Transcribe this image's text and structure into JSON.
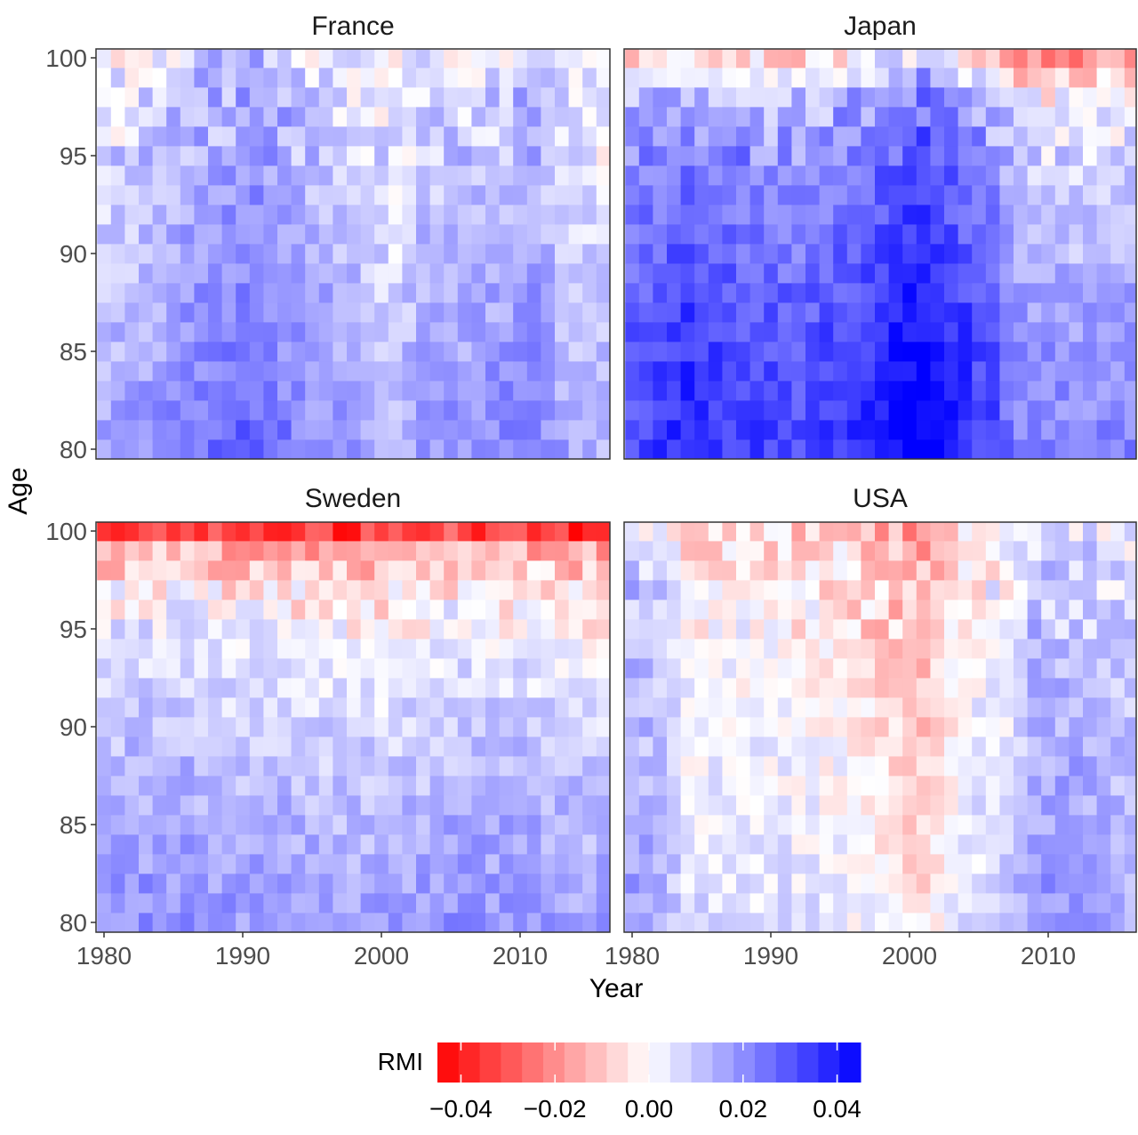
{
  "chart_data": {
    "type": "heatmap",
    "x_label": "Year",
    "y_label": "Age",
    "x_range": [
      1980,
      2016
    ],
    "y_range": [
      80,
      100
    ],
    "x_ticks": [
      "1980",
      "1990",
      "2000",
      "2010"
    ],
    "y_ticks": [
      "80",
      "85",
      "90",
      "95",
      "100"
    ],
    "color_scale": {
      "title": "RMI",
      "limits": [
        -0.045,
        0.045
      ],
      "ticks": [
        "−0.04",
        "−0.02",
        "0.00",
        "0.02",
        "0.04"
      ],
      "tick_values": [
        -0.04,
        -0.02,
        0.0,
        0.02,
        0.04
      ],
      "low_color": "#ff0000",
      "mid_color": "#ffffff",
      "high_color": "#0000ff"
    },
    "panels": [
      {
        "title": "France",
        "year_bands": [
          [
            1980,
            0.012
          ],
          [
            1984,
            0.016
          ],
          [
            1987,
            0.021
          ],
          [
            1991,
            0.024
          ],
          [
            1994,
            0.018
          ],
          [
            1998,
            0.014
          ],
          [
            2001,
            0.009
          ],
          [
            2003,
            0.015
          ],
          [
            2007,
            0.016
          ],
          [
            2011,
            0.02
          ],
          [
            2013,
            0.012
          ],
          [
            2016,
            0.01
          ]
        ],
        "age_bands": [
          [
            80,
            0.004
          ],
          [
            85,
            0.0
          ],
          [
            90,
            -0.003
          ],
          [
            95,
            -0.006
          ],
          [
            98,
            -0.008
          ],
          [
            100,
            -0.012
          ]
        ]
      },
      {
        "title": "Japan",
        "year_bands": [
          [
            1980,
            0.024
          ],
          [
            1984,
            0.03
          ],
          [
            1988,
            0.026
          ],
          [
            1992,
            0.024
          ],
          [
            1996,
            0.028
          ],
          [
            1999,
            0.034
          ],
          [
            2001,
            0.038
          ],
          [
            2003,
            0.032
          ],
          [
            2006,
            0.024
          ],
          [
            2008,
            0.014
          ],
          [
            2012,
            0.012
          ],
          [
            2016,
            0.014
          ]
        ],
        "age_bands": [
          [
            80,
            0.008
          ],
          [
            85,
            0.006
          ],
          [
            90,
            0.0
          ],
          [
            95,
            -0.005
          ],
          [
            98,
            -0.014
          ],
          [
            100,
            -0.03
          ]
        ]
      },
      {
        "title": "Sweden",
        "year_bands": [
          [
            1980,
            0.013
          ],
          [
            1985,
            0.014
          ],
          [
            1990,
            0.012
          ],
          [
            1995,
            0.011
          ],
          [
            2000,
            0.01
          ],
          [
            2005,
            0.013
          ],
          [
            2010,
            0.013
          ],
          [
            2016,
            0.01
          ]
        ],
        "age_bands": [
          [
            80,
            0.006
          ],
          [
            85,
            0.002
          ],
          [
            90,
            -0.003
          ],
          [
            94,
            -0.009
          ],
          [
            97,
            -0.016
          ],
          [
            99,
            -0.026
          ],
          [
            100,
            -0.046
          ]
        ]
      },
      {
        "title": "USA",
        "year_bands": [
          [
            1980,
            0.016
          ],
          [
            1982,
            0.012
          ],
          [
            1984,
            0.004
          ],
          [
            1990,
            0.003
          ],
          [
            1995,
            0.001
          ],
          [
            1998,
            -0.004
          ],
          [
            2001,
            -0.008
          ],
          [
            2004,
            0.004
          ],
          [
            2007,
            0.006
          ],
          [
            2009,
            0.016
          ],
          [
            2012,
            0.016
          ],
          [
            2016,
            0.012
          ]
        ],
        "age_bands": [
          [
            80,
            0.003
          ],
          [
            85,
            0.0
          ],
          [
            90,
            -0.002
          ],
          [
            95,
            -0.004
          ],
          [
            98,
            -0.006
          ],
          [
            100,
            -0.01
          ]
        ]
      }
    ]
  }
}
